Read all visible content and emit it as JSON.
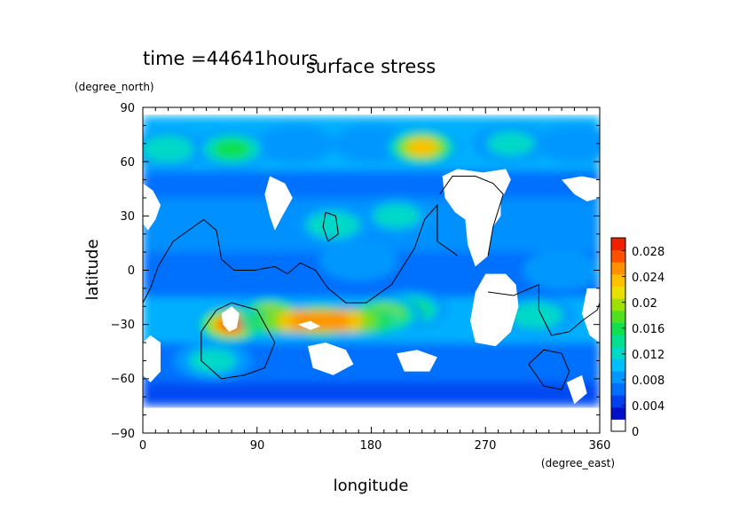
{
  "chart_data": {
    "type": "heatmap",
    "time_label": "time =44641hours",
    "title": "surface stress",
    "xlabel": "longitude",
    "ylabel": "latitude",
    "x_unit": "(degree_east)",
    "y_unit": "(degree_north)",
    "xlim": [
      0,
      360
    ],
    "ylim": [
      -90,
      90
    ],
    "x_ticks": [
      "0",
      "90",
      "180",
      "270",
      "360"
    ],
    "y_ticks": [
      "90",
      "60",
      "30",
      "0",
      "−30",
      "−60",
      "−90"
    ],
    "colorbar": {
      "range": [
        0,
        0.03
      ],
      "tick_labels": [
        "0",
        "0.004",
        "0.008",
        "0.012",
        "0.016",
        "0.02",
        "0.024",
        "0.028"
      ],
      "colors": [
        "#ffffff",
        "#0010c8",
        "#0040f0",
        "#0070ff",
        "#0098ff",
        "#00c0ff",
        "#00d8c8",
        "#00e090",
        "#10e050",
        "#50e020",
        "#a0e000",
        "#e8e000",
        "#ffc000",
        "#ff9000",
        "#ff5000",
        "#f02000"
      ]
    },
    "features": [
      {
        "lon": 70,
        "lat": 67,
        "value": 0.016
      },
      {
        "lon": 20,
        "lat": 67,
        "value": 0.014
      },
      {
        "lon": 120,
        "lat": 70,
        "value": 0.008
      },
      {
        "lon": 180,
        "lat": 70,
        "value": 0.01
      },
      {
        "lon": 220,
        "lat": 68,
        "value": 0.024
      },
      {
        "lon": 290,
        "lat": 70,
        "value": 0.012
      },
      {
        "lon": 340,
        "lat": 70,
        "value": 0.01
      },
      {
        "lon": 70,
        "lat": -30,
        "value": 0.028
      },
      {
        "lon": 100,
        "lat": -25,
        "value": 0.024
      },
      {
        "lon": 140,
        "lat": -28,
        "value": 0.026
      },
      {
        "lon": 190,
        "lat": -25,
        "value": 0.022
      },
      {
        "lon": 210,
        "lat": -22,
        "value": 0.016
      },
      {
        "lon": 55,
        "lat": -50,
        "value": 0.012
      },
      {
        "lon": 150,
        "lat": 25,
        "value": 0.014
      },
      {
        "lon": 200,
        "lat": 30,
        "value": 0.012
      },
      {
        "lon": 170,
        "lat": 5,
        "value": 0.01
      },
      {
        "lon": 310,
        "lat": -25,
        "value": 0.014
      },
      {
        "lon": 330,
        "lat": 0,
        "value": 0.01
      }
    ]
  }
}
